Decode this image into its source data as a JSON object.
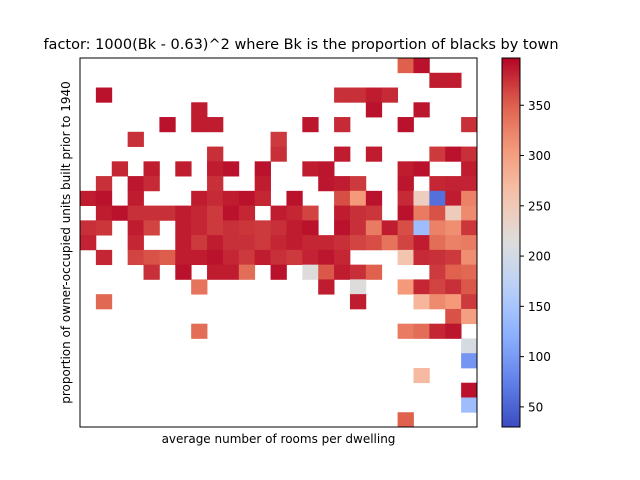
{
  "chart_data": {
    "type": "heatmap",
    "title": "factor: 1000(Bk - 0.63)^2 where Bk is the proportion of blacks by town",
    "xlabel": "average number of rooms per dwelling",
    "ylabel": "proportion of owner-occupied units built prior to 1940",
    "colormap": "coolwarm",
    "colorbar": {
      "range": [
        30,
        397
      ],
      "ticks": [
        50,
        100,
        150,
        200,
        250,
        300,
        350
      ]
    },
    "grid": false,
    "x_ticks_shown": false,
    "y_ticks_shown": false,
    "grid_size": {
      "cols": 25,
      "rows": 25
    },
    "values": [
      [
        null,
        null,
        null,
        null,
        null,
        null,
        null,
        null,
        null,
        null,
        null,
        null,
        null,
        null,
        null,
        null,
        null,
        null,
        null,
        null,
        351,
        390,
        null,
        null,
        null
      ],
      [
        null,
        null,
        null,
        null,
        null,
        null,
        null,
        null,
        null,
        null,
        null,
        null,
        null,
        null,
        null,
        null,
        null,
        null,
        null,
        null,
        null,
        null,
        385,
        385,
        null
      ],
      [
        null,
        390,
        null,
        null,
        null,
        null,
        null,
        null,
        null,
        null,
        null,
        null,
        null,
        null,
        null,
        null,
        375,
        375,
        385,
        378,
        null,
        null,
        null,
        null,
        null
      ],
      [
        null,
        null,
        null,
        null,
        null,
        null,
        null,
        385,
        null,
        null,
        null,
        null,
        null,
        null,
        null,
        null,
        null,
        null,
        390,
        null,
        null,
        388,
        null,
        null,
        null
      ],
      [
        null,
        null,
        null,
        null,
        null,
        390,
        null,
        385,
        385,
        null,
        null,
        null,
        null,
        null,
        388,
        null,
        378,
        null,
        null,
        null,
        390,
        null,
        null,
        null,
        375
      ],
      [
        null,
        null,
        null,
        375,
        null,
        null,
        null,
        null,
        null,
        null,
        null,
        null,
        370,
        null,
        null,
        null,
        null,
        null,
        null,
        null,
        null,
        null,
        null,
        null,
        null
      ],
      [
        null,
        null,
        null,
        null,
        null,
        null,
        null,
        null,
        375,
        null,
        null,
        null,
        375,
        null,
        null,
        null,
        385,
        null,
        385,
        null,
        null,
        null,
        370,
        390,
        375
      ],
      [
        null,
        null,
        380,
        null,
        385,
        null,
        385,
        null,
        385,
        390,
        null,
        390,
        null,
        null,
        385,
        388,
        null,
        null,
        null,
        null,
        385,
        390,
        null,
        null,
        385
      ],
      [
        null,
        375,
        null,
        388,
        378,
        null,
        null,
        null,
        375,
        null,
        null,
        385,
        null,
        null,
        null,
        388,
        385,
        370,
        null,
        null,
        388,
        null,
        380,
        382,
        382
      ],
      [
        385,
        390,
        null,
        385,
        null,
        null,
        null,
        385,
        378,
        385,
        390,
        380,
        null,
        390,
        null,
        null,
        360,
        305,
        390,
        null,
        378,
        242,
        60,
        385,
        325
      ],
      [
        null,
        385,
        390,
        375,
        375,
        375,
        385,
        380,
        370,
        390,
        380,
        null,
        385,
        380,
        365,
        null,
        385,
        375,
        372,
        null,
        390,
        330,
        358,
        245,
        318
      ],
      [
        375,
        372,
        null,
        385,
        365,
        null,
        385,
        380,
        370,
        375,
        372,
        370,
        375,
        385,
        390,
        null,
        390,
        375,
        330,
        385,
        360,
        140,
        325,
        315,
        372
      ],
      [
        382,
        null,
        null,
        380,
        null,
        null,
        385,
        370,
        385,
        375,
        375,
        370,
        380,
        385,
        380,
        380,
        375,
        365,
        360,
        335,
        365,
        385,
        340,
        325,
        330
      ],
      [
        null,
        380,
        null,
        365,
        358,
        352,
        385,
        385,
        390,
        380,
        370,
        385,
        375,
        370,
        382,
        388,
        380,
        null,
        null,
        null,
        258,
        378,
        375,
        370,
        315
      ],
      [
        null,
        null,
        null,
        null,
        375,
        null,
        390,
        null,
        385,
        385,
        340,
        null,
        390,
        null,
        215,
        355,
        385,
        375,
        350,
        null,
        null,
        null,
        370,
        350,
        345
      ],
      [
        null,
        null,
        null,
        null,
        null,
        null,
        null,
        335,
        null,
        null,
        null,
        null,
        null,
        null,
        null,
        385,
        null,
        215,
        null,
        null,
        305,
        380,
        365,
        375,
        355
      ],
      [
        null,
        345,
        null,
        null,
        null,
        null,
        null,
        null,
        null,
        null,
        null,
        null,
        null,
        null,
        null,
        null,
        null,
        385,
        null,
        null,
        null,
        275,
        318,
        305,
        370
      ],
      [
        null,
        null,
        null,
        null,
        null,
        null,
        null,
        null,
        null,
        null,
        null,
        null,
        null,
        null,
        null,
        null,
        null,
        null,
        null,
        null,
        null,
        null,
        null,
        358,
        300
      ],
      [
        null,
        null,
        null,
        null,
        null,
        null,
        null,
        340,
        null,
        null,
        null,
        null,
        null,
        null,
        null,
        null,
        null,
        null,
        null,
        null,
        330,
        340,
        380,
        388,
        null
      ],
      [
        null,
        null,
        null,
        null,
        null,
        null,
        null,
        null,
        null,
        null,
        null,
        null,
        null,
        null,
        null,
        null,
        null,
        null,
        null,
        null,
        null,
        null,
        null,
        null,
        205
      ],
      [
        null,
        null,
        null,
        null,
        null,
        null,
        null,
        null,
        null,
        null,
        null,
        null,
        null,
        null,
        null,
        null,
        null,
        null,
        null,
        null,
        null,
        null,
        null,
        null,
        95
      ],
      [
        null,
        null,
        null,
        null,
        null,
        null,
        null,
        null,
        null,
        null,
        null,
        null,
        null,
        null,
        null,
        null,
        null,
        null,
        null,
        null,
        null,
        270,
        null,
        null,
        null
      ],
      [
        null,
        null,
        null,
        null,
        null,
        null,
        null,
        null,
        null,
        null,
        null,
        null,
        null,
        null,
        null,
        null,
        null,
        null,
        null,
        null,
        null,
        null,
        null,
        null,
        390
      ],
      [
        null,
        null,
        null,
        null,
        null,
        null,
        null,
        null,
        null,
        null,
        null,
        null,
        null,
        null,
        null,
        null,
        null,
        null,
        null,
        null,
        null,
        null,
        null,
        null,
        140
      ],
      [
        null,
        null,
        null,
        null,
        null,
        null,
        null,
        null,
        null,
        null,
        null,
        null,
        null,
        null,
        null,
        null,
        null,
        null,
        null,
        null,
        350,
        null,
        null,
        null,
        null
      ]
    ]
  }
}
